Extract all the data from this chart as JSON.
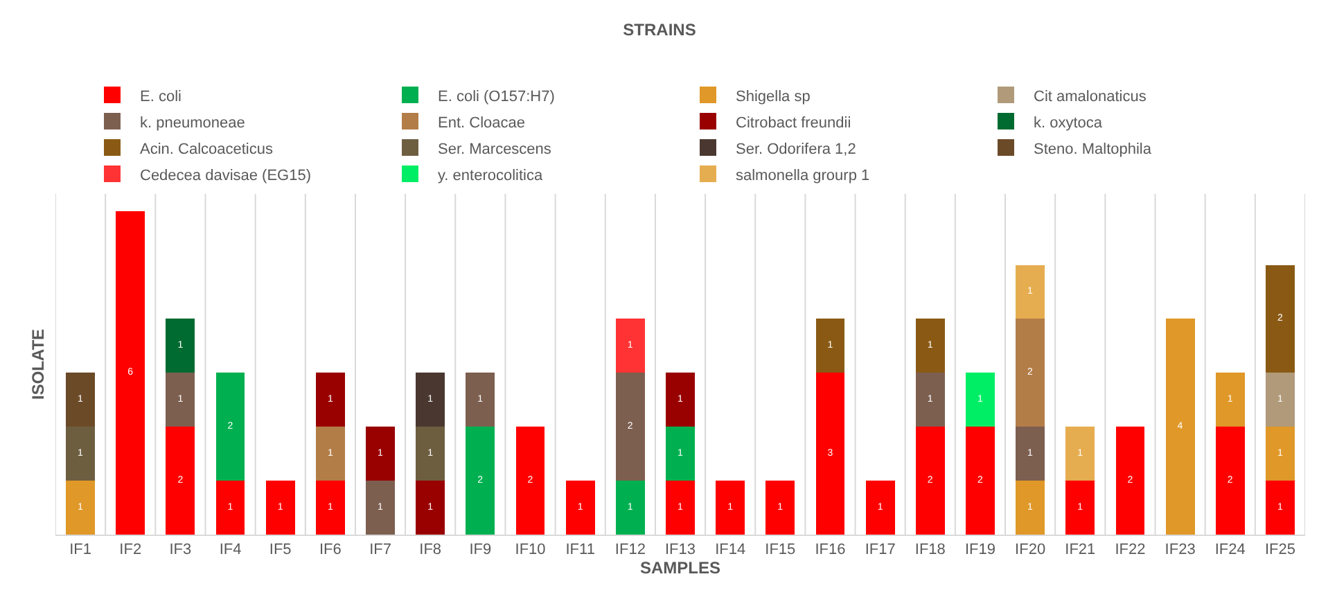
{
  "chart_data": {
    "type": "bar",
    "stacked": true,
    "title": "STRAINS",
    "xlabel": "SAMPLES",
    "ylabel": "ISOLATE",
    "data_labels": true,
    "grid": "x",
    "legend": "top",
    "categories": [
      "IF1",
      "IF2",
      "IF3",
      "IF4",
      "IF5",
      "IF6",
      "IF7",
      "IF8",
      "IF9",
      "IF10",
      "IF11",
      "IF12",
      "IF13",
      "IF14",
      "IF15",
      "IF16",
      "IF17",
      "IF18",
      "IF19",
      "IF20",
      "IF21",
      "IF22",
      "IF23",
      "IF24",
      "IF25"
    ],
    "series": [
      {
        "name": "E. coli",
        "color": "#ff0000",
        "values": [
          null,
          6,
          2,
          1,
          1,
          1,
          null,
          null,
          null,
          2,
          1,
          null,
          1,
          1,
          1,
          3,
          1,
          2,
          2,
          null,
          1,
          2,
          null,
          2,
          1
        ]
      },
      {
        "name": "E. coli (O157:H7)",
        "color": "#00b050",
        "values": [
          null,
          null,
          null,
          2,
          null,
          null,
          null,
          null,
          2,
          null,
          null,
          1,
          1,
          null,
          null,
          null,
          null,
          null,
          null,
          null,
          null,
          null,
          null,
          null,
          null
        ]
      },
      {
        "name": "Shigella sp",
        "color": "#e09828",
        "values": [
          1,
          null,
          null,
          null,
          null,
          null,
          null,
          null,
          null,
          null,
          null,
          null,
          null,
          null,
          null,
          null,
          null,
          null,
          null,
          1,
          null,
          null,
          4,
          1,
          1
        ]
      },
      {
        "name": "Cit amalonaticus",
        "color": "#b09a7a",
        "values": [
          null,
          null,
          null,
          null,
          null,
          null,
          null,
          null,
          null,
          null,
          null,
          null,
          null,
          null,
          null,
          null,
          null,
          null,
          null,
          null,
          null,
          null,
          null,
          null,
          1
        ]
      },
      {
        "name": "k. pneumoneae",
        "color": "#7d5f50",
        "values": [
          null,
          null,
          1,
          null,
          null,
          null,
          1,
          null,
          1,
          null,
          null,
          2,
          null,
          null,
          null,
          null,
          null,
          1,
          null,
          1,
          null,
          null,
          null,
          null,
          null
        ]
      },
      {
        "name": "Ent. Cloacae",
        "color": "#b37d48",
        "values": [
          null,
          null,
          null,
          null,
          null,
          1,
          null,
          null,
          null,
          null,
          null,
          null,
          null,
          null,
          null,
          null,
          null,
          null,
          null,
          2,
          null,
          null,
          null,
          null,
          null
        ]
      },
      {
        "name": "Citrobact freundii",
        "color": "#990000",
        "values": [
          null,
          null,
          null,
          null,
          null,
          1,
          1,
          1,
          null,
          null,
          null,
          null,
          1,
          null,
          null,
          null,
          null,
          null,
          null,
          null,
          null,
          null,
          null,
          null,
          null
        ]
      },
      {
        "name": "k. oxytoca",
        "color": "#006b30",
        "values": [
          null,
          null,
          1,
          null,
          null,
          null,
          null,
          null,
          null,
          null,
          null,
          null,
          null,
          null,
          null,
          null,
          null,
          null,
          null,
          null,
          null,
          null,
          null,
          null,
          null
        ]
      },
      {
        "name": "Acin. Calcoaceticus",
        "color": "#8a5a14",
        "values": [
          null,
          null,
          null,
          null,
          null,
          null,
          null,
          null,
          null,
          null,
          null,
          null,
          null,
          null,
          null,
          1,
          null,
          1,
          null,
          null,
          null,
          null,
          null,
          null,
          2
        ]
      },
      {
        "name": "Ser. Marcescens",
        "color": "#6e5e40",
        "values": [
          1,
          null,
          null,
          null,
          null,
          null,
          null,
          1,
          null,
          null,
          null,
          null,
          null,
          null,
          null,
          null,
          null,
          null,
          null,
          null,
          null,
          null,
          null,
          null,
          null
        ]
      },
      {
        "name": "Ser. Odorifera 1,2",
        "color": "#4a3830",
        "values": [
          null,
          null,
          null,
          null,
          null,
          null,
          null,
          1,
          null,
          null,
          null,
          null,
          null,
          null,
          null,
          null,
          null,
          null,
          null,
          null,
          null,
          null,
          null,
          null,
          null
        ]
      },
      {
        "name": "Steno. Maltophila",
        "color": "#6b4a28",
        "values": [
          1,
          null,
          null,
          null,
          null,
          null,
          null,
          null,
          null,
          null,
          null,
          null,
          null,
          null,
          null,
          null,
          null,
          null,
          null,
          null,
          null,
          null,
          null,
          null,
          null
        ]
      },
      {
        "name": "Cedecea davisae (EG15)",
        "color": "#ff3333",
        "values": [
          null,
          null,
          null,
          null,
          null,
          null,
          null,
          null,
          null,
          null,
          null,
          1,
          null,
          null,
          null,
          null,
          null,
          null,
          null,
          null,
          null,
          null,
          null,
          null,
          null
        ]
      },
      {
        "name": "y. enterocolitica",
        "color": "#00ee66",
        "values": [
          null,
          null,
          null,
          null,
          null,
          null,
          null,
          null,
          null,
          null,
          null,
          null,
          null,
          null,
          null,
          null,
          null,
          null,
          1,
          null,
          null,
          null,
          null,
          null,
          null
        ]
      },
      {
        "name": "salmonella grourp 1",
        "color": "#e6ad50",
        "values": [
          null,
          null,
          null,
          null,
          null,
          null,
          null,
          null,
          null,
          null,
          null,
          null,
          null,
          null,
          null,
          null,
          null,
          null,
          null,
          1,
          1,
          null,
          null,
          null,
          null
        ]
      }
    ]
  }
}
